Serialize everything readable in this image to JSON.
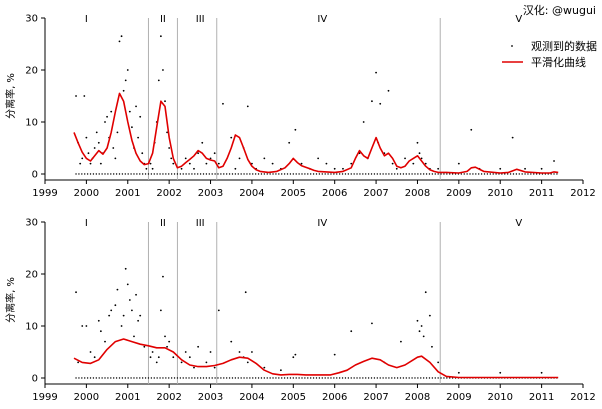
{
  "credit": "汉化: @wugui",
  "legend": {
    "points_label": "观测到的数据",
    "line_label": "平滑化曲线"
  },
  "colors": {
    "line": "#e00000",
    "points": "#000000",
    "period_line": "#b0b0b0"
  },
  "chart_data": [
    {
      "type": "scatter",
      "ylabel": "分离率, %",
      "xlim": [
        1999,
        2012
      ],
      "ylim": [
        0,
        30
      ],
      "xticks": [
        "1999",
        "2000",
        "2001",
        "2002",
        "2003",
        "2004",
        "2005",
        "2006",
        "2007",
        "2008",
        "2009",
        "2010",
        "2011",
        "2012"
      ],
      "yticks": [
        "0",
        "10",
        "20",
        "30"
      ],
      "periods": [
        {
          "label": "I",
          "at": 2000.0
        },
        {
          "label": "II",
          "at": 2001.85
        },
        {
          "label": "III",
          "at": 2002.75
        },
        {
          "label": "IV",
          "at": 2005.7
        },
        {
          "label": "V",
          "at": 2010.45
        }
      ],
      "period_boundaries": [
        2001.5,
        2002.2,
        2003.15,
        2008.55
      ],
      "series": [
        {
          "name": "观测到的数据",
          "kind": "points",
          "x": [
            1999.75,
            1999.8,
            1999.85,
            1999.9,
            1999.95,
            2000.0,
            2000.05,
            2000.1,
            2000.15,
            2000.2,
            2000.25,
            2000.3,
            2000.35,
            2000.4,
            2000.45,
            2000.5,
            2000.55,
            2000.6,
            2000.65,
            2000.7,
            2000.75,
            2000.8,
            2000.85,
            2000.9,
            2000.95,
            2001.0,
            2001.05,
            2001.1,
            2001.15,
            2001.2,
            2001.25,
            2001.3,
            2001.35,
            2001.4,
            2001.45,
            2001.55,
            2001.6,
            2001.65,
            2001.7,
            2001.75,
            2001.8,
            2001.85,
            2001.9,
            2001.95,
            2002.0,
            2002.05,
            2002.1,
            2002.3,
            2002.4,
            2002.5,
            2002.6,
            2002.7,
            2002.8,
            2002.9,
            2003.0,
            2003.1,
            2003.2,
            2003.3,
            2003.5,
            2003.6,
            2003.7,
            2003.8,
            2003.9,
            2004.0,
            2004.1,
            2004.3,
            2004.5,
            2004.7,
            2004.9,
            2005.05,
            2005.2,
            2005.4,
            2005.6,
            2005.8,
            2006.0,
            2006.2,
            2006.4,
            2006.6,
            2006.7,
            2006.8,
            2006.9,
            2007.0,
            2007.05,
            2007.1,
            2007.2,
            2007.3,
            2007.4,
            2007.5,
            2007.7,
            2007.9,
            2008.0,
            2008.05,
            2008.1,
            2008.2,
            2008.3,
            2008.5,
            2009.0,
            2009.3,
            2009.5,
            2010.0,
            2010.3,
            2010.6,
            2011.0,
            2011.3
          ],
          "y": [
            15,
            6,
            2,
            3,
            15,
            7,
            4,
            2,
            3,
            5,
            8,
            6,
            2,
            4,
            10,
            11,
            7,
            12,
            5,
            3,
            8,
            25.5,
            26.5,
            16,
            18,
            20,
            12,
            9,
            5,
            13,
            7,
            11,
            4,
            2,
            1,
            2,
            1,
            6,
            10,
            18,
            26.5,
            20,
            14,
            8,
            5,
            3,
            2,
            1,
            3,
            2,
            1,
            4,
            6,
            2,
            3,
            4,
            2,
            13.5,
            7,
            1,
            3,
            5,
            13,
            2,
            1,
            3,
            2,
            1,
            6,
            8.5,
            2,
            1,
            3,
            2,
            1,
            1,
            2,
            4,
            10,
            3,
            14,
            19.5,
            6,
            13.5,
            4,
            16,
            2,
            1,
            3,
            2,
            6,
            4,
            3,
            2,
            1,
            1,
            2,
            8.5,
            1,
            1,
            7,
            1,
            1,
            2.5
          ]
        },
        {
          "name": "平滑化曲线",
          "kind": "line",
          "x": [
            1999.7,
            1999.8,
            1999.9,
            2000.0,
            2000.1,
            2000.2,
            2000.3,
            2000.4,
            2000.5,
            2000.6,
            2000.7,
            2000.8,
            2000.9,
            2001.0,
            2001.1,
            2001.2,
            2001.3,
            2001.4,
            2001.5,
            2001.6,
            2001.7,
            2001.8,
            2001.9,
            2002.0,
            2002.1,
            2002.2,
            2002.3,
            2002.4,
            2002.5,
            2002.6,
            2002.7,
            2002.8,
            2002.9,
            2003.0,
            2003.1,
            2003.2,
            2003.3,
            2003.4,
            2003.5,
            2003.6,
            2003.7,
            2003.8,
            2003.9,
            2004.0,
            2004.1,
            2004.2,
            2004.4,
            2004.6,
            2004.8,
            2004.9,
            2005.0,
            2005.1,
            2005.2,
            2005.3,
            2005.4,
            2005.5,
            2005.6,
            2005.8,
            2006.0,
            2006.2,
            2006.4,
            2006.5,
            2006.6,
            2006.7,
            2006.8,
            2006.9,
            2007.0,
            2007.1,
            2007.2,
            2007.3,
            2007.4,
            2007.5,
            2007.6,
            2007.7,
            2007.8,
            2007.9,
            2008.0,
            2008.1,
            2008.2,
            2008.3,
            2008.4,
            2008.5,
            2008.7,
            2009.0,
            2009.2,
            2009.3,
            2009.4,
            2009.6,
            2010.0,
            2010.2,
            2010.3,
            2010.4,
            2010.6,
            2011.0,
            2011.2,
            2011.3,
            2011.4
          ],
          "y": [
            8,
            6,
            4.2,
            3,
            2.5,
            3.5,
            4.5,
            3.8,
            5,
            8,
            12,
            15.5,
            14,
            10,
            6.5,
            4,
            2.5,
            1.8,
            2,
            4,
            9,
            14,
            13,
            7,
            3,
            1.2,
            1.5,
            2.2,
            2.8,
            3.5,
            4.5,
            4,
            3,
            2.7,
            2.5,
            1.2,
            1.5,
            3,
            5,
            7.5,
            7,
            5,
            2.8,
            1.5,
            0.8,
            0.5,
            0.3,
            0.5,
            1.2,
            2,
            3,
            2.2,
            1.6,
            1.3,
            1,
            0.7,
            0.5,
            0.4,
            0.3,
            0.5,
            1.2,
            3,
            4.5,
            3.5,
            3,
            5,
            7,
            5,
            3.5,
            4,
            3,
            1.5,
            1.2,
            1.5,
            2.5,
            3,
            3.5,
            2.5,
            1.5,
            0.8,
            0.5,
            0.3,
            0.3,
            0.2,
            0.5,
            1.2,
            1.3,
            0.5,
            0.2,
            0.3,
            0.6,
            0.9,
            0.4,
            0.2,
            0.2,
            0.4,
            0.3
          ]
        }
      ]
    },
    {
      "type": "scatter",
      "ylabel": "分离率, %",
      "xlim": [
        1999,
        2012
      ],
      "ylim": [
        0,
        30
      ],
      "xticks": [
        "1999",
        "2000",
        "2001",
        "2002",
        "2003",
        "2004",
        "2005",
        "2006",
        "2007",
        "2008",
        "2009",
        "2010",
        "2011",
        "2012"
      ],
      "yticks": [
        "0",
        "10",
        "20",
        "30"
      ],
      "periods": [
        {
          "label": "I",
          "at": 2000.0
        },
        {
          "label": "II",
          "at": 2001.85
        },
        {
          "label": "III",
          "at": 2002.75
        },
        {
          "label": "IV",
          "at": 2005.7
        },
        {
          "label": "V",
          "at": 2010.45
        }
      ],
      "period_boundaries": [
        2001.5,
        2002.2,
        2003.15,
        2008.55
      ],
      "series": [
        {
          "name": "观测到的数据",
          "kind": "points",
          "x": [
            1999.75,
            1999.8,
            1999.9,
            2000.0,
            2000.1,
            2000.2,
            2000.3,
            2000.35,
            2000.45,
            2000.55,
            2000.6,
            2000.7,
            2000.75,
            2000.85,
            2000.9,
            2000.95,
            2001.0,
            2001.05,
            2001.1,
            2001.15,
            2001.2,
            2001.25,
            2001.3,
            2001.4,
            2001.55,
            2001.6,
            2001.7,
            2001.75,
            2001.8,
            2001.85,
            2001.9,
            2001.95,
            2002.0,
            2002.1,
            2002.3,
            2002.4,
            2002.5,
            2002.6,
            2002.7,
            2002.9,
            2003.0,
            2003.1,
            2003.2,
            2003.5,
            2003.7,
            2003.8,
            2003.85,
            2003.9,
            2004.0,
            2004.3,
            2004.7,
            2005.0,
            2005.05,
            2006.0,
            2006.4,
            2006.9,
            2007.2,
            2007.6,
            2008.0,
            2008.05,
            2008.1,
            2008.15,
            2008.2,
            2008.3,
            2008.35,
            2008.5,
            2009.0,
            2010.0,
            2011.0
          ],
          "y": [
            16.5,
            3,
            10,
            10,
            5,
            4,
            11,
            9,
            7,
            12,
            13,
            14,
            17,
            10,
            12,
            21,
            18,
            15,
            13,
            8,
            16,
            11,
            12,
            6,
            4,
            5,
            3,
            4,
            13,
            19.5,
            8,
            6,
            7,
            4,
            3,
            5,
            4,
            2,
            6,
            3,
            5,
            2,
            13,
            7,
            5,
            4,
            16.5,
            3,
            5,
            2,
            1.5,
            4,
            4.5,
            4.5,
            9,
            10.5,
            3,
            7,
            11,
            9,
            10,
            8,
            16.5,
            12,
            6,
            3,
            1,
            1,
            1
          ]
        },
        {
          "name": "平滑化曲线",
          "kind": "line",
          "x": [
            1999.7,
            1999.9,
            2000.1,
            2000.3,
            2000.5,
            2000.7,
            2000.9,
            2001.1,
            2001.3,
            2001.5,
            2001.7,
            2001.9,
            2002.1,
            2002.3,
            2002.5,
            2002.7,
            2002.9,
            2003.1,
            2003.3,
            2003.5,
            2003.7,
            2003.9,
            2004.1,
            2004.3,
            2004.5,
            2004.7,
            2004.9,
            2005.1,
            2005.3,
            2005.5,
            2005.7,
            2005.9,
            2006.1,
            2006.3,
            2006.5,
            2006.7,
            2006.9,
            2007.1,
            2007.3,
            2007.5,
            2007.7,
            2007.9,
            2008.0,
            2008.1,
            2008.3,
            2008.5,
            2008.7,
            2009.0,
            2009.5,
            2010.0,
            2010.5,
            2011.0,
            2011.4
          ],
          "y": [
            3.8,
            3,
            2.8,
            3.5,
            5.5,
            7,
            7.5,
            7,
            6.5,
            6.2,
            5.8,
            5.8,
            5,
            3.5,
            2.5,
            2.2,
            2.2,
            2.4,
            2.8,
            3.5,
            4,
            3.8,
            2.8,
            1.5,
            0.8,
            0.6,
            0.7,
            0.7,
            0.6,
            0.6,
            0.6,
            0.6,
            1,
            1.5,
            2.5,
            3.2,
            3.8,
            3.5,
            2.5,
            2,
            2.5,
            3.5,
            4,
            4.2,
            3,
            1.2,
            0.3,
            0.1,
            0.1,
            0.1,
            0.1,
            0.1,
            0.1
          ]
        }
      ]
    }
  ]
}
